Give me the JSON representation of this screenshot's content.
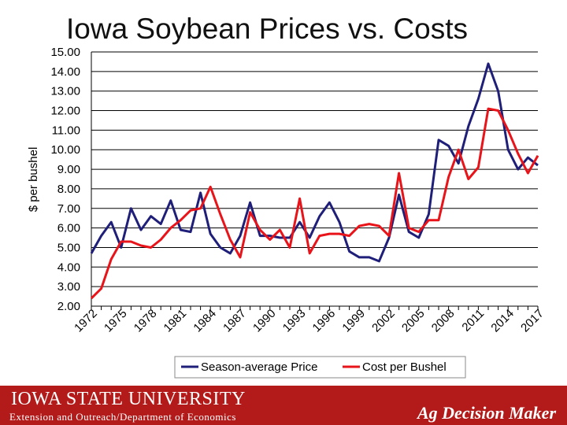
{
  "chart_data": {
    "type": "line",
    "title": "Iowa Soybean Prices vs. Costs",
    "xlabel": "",
    "ylabel": "$ per bushel",
    "ylim": [
      2.0,
      15.0
    ],
    "ytick_values": [
      2,
      3,
      4,
      5,
      6,
      7,
      8,
      9,
      10,
      11,
      12,
      13,
      14,
      15
    ],
    "ytick_labels": [
      "2.00",
      "3.00",
      "4.00",
      "5.00",
      "6.00",
      "7.00",
      "8.00",
      "9.00",
      "10.00",
      "11.00",
      "12.00",
      "13.00",
      "14.00",
      "15.00"
    ],
    "x": [
      1972,
      1973,
      1974,
      1975,
      1976,
      1977,
      1978,
      1979,
      1980,
      1981,
      1982,
      1983,
      1984,
      1985,
      1986,
      1987,
      1988,
      1989,
      1990,
      1991,
      1992,
      1993,
      1994,
      1995,
      1996,
      1997,
      1998,
      1999,
      2000,
      2001,
      2002,
      2003,
      2004,
      2005,
      2006,
      2007,
      2008,
      2009,
      2010,
      2011,
      2012,
      2013,
      2014,
      2015,
      2016,
      2017
    ],
    "xtick_labels": [
      "1972",
      "1975",
      "1978",
      "1981",
      "1984",
      "1987",
      "1990",
      "1993",
      "1996",
      "1999",
      "2002",
      "2005",
      "2008",
      "2011",
      "2014",
      "2017"
    ],
    "grid": true,
    "legend": "bottom",
    "series": [
      {
        "name": "Season-average Price",
        "color": "#1f1f7a",
        "values": [
          4.7,
          5.6,
          6.3,
          5.0,
          7.0,
          5.9,
          6.6,
          6.2,
          7.4,
          5.9,
          5.8,
          7.8,
          5.7,
          5.0,
          4.7,
          5.6,
          7.3,
          5.6,
          5.6,
          5.5,
          5.5,
          6.3,
          5.5,
          6.6,
          7.3,
          6.3,
          4.8,
          4.5,
          4.5,
          4.3,
          5.5,
          7.7,
          5.8,
          5.5,
          6.7,
          10.5,
          10.2,
          9.3,
          11.2,
          12.6,
          14.4,
          13.0,
          10.0,
          9.0,
          9.6,
          9.2
        ]
      },
      {
        "name": "Cost per Bushel",
        "color": "#e8141a",
        "values": [
          2.4,
          2.9,
          4.4,
          5.3,
          5.3,
          5.1,
          5.0,
          5.4,
          6.0,
          6.4,
          6.9,
          7.0,
          8.1,
          6.7,
          5.4,
          4.5,
          6.8,
          5.9,
          5.4,
          5.9,
          5.0,
          7.5,
          4.7,
          5.6,
          5.7,
          5.7,
          5.6,
          6.1,
          6.2,
          6.1,
          5.6,
          8.8,
          6.0,
          5.8,
          6.4,
          6.4,
          8.6,
          10.0,
          8.5,
          9.1,
          12.1,
          12.0,
          11.0,
          9.8,
          8.8,
          9.7
        ]
      }
    ]
  },
  "footer": {
    "university": "IOWA STATE UNIVERSITY",
    "department": "Extension and Outreach/Department of Economics",
    "brand": "Ag Decision Maker"
  }
}
